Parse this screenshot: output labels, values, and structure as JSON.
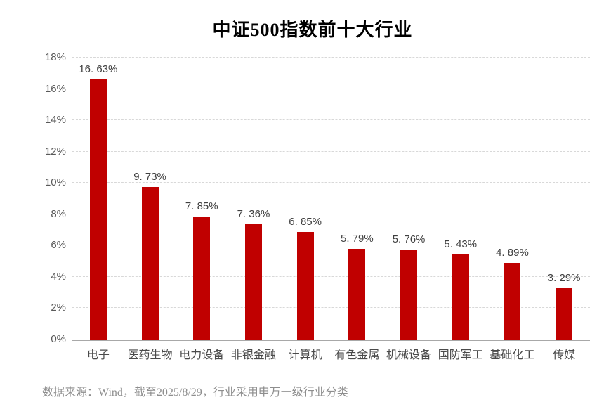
{
  "title": "中证500指数前十大行业",
  "source_note": "数据来源：Wind，截至2025/8/29，行业采用申万一级行业分类",
  "colors": {
    "bar": "#C00000",
    "gridline": "#D8D8D8",
    "axis_line": "#A8A8A8",
    "tick_label": "#595959",
    "value_label": "#3F3F3F",
    "category_label": "#4A4A4A",
    "source_text": "#8E8E8E",
    "title_text": "#000000",
    "background": "#FFFFFF"
  },
  "chart_data": {
    "type": "bar",
    "title": "中证500指数前十大行业",
    "categories": [
      "电子",
      "医药生物",
      "电力设备",
      "非银金融",
      "计算机",
      "有色金属",
      "机械设备",
      "国防军工",
      "基础化工",
      "传媒"
    ],
    "values": [
      16.63,
      9.73,
      7.85,
      7.36,
      6.85,
      5.79,
      5.76,
      5.43,
      4.89,
      3.29
    ],
    "value_labels": [
      "16. 63%",
      "9. 73%",
      "7. 85%",
      "7. 36%",
      "6. 85%",
      "5. 79%",
      "5. 76%",
      "5. 43%",
      "4. 89%",
      "3. 29%"
    ],
    "xlabel": "",
    "ylabel": "",
    "ylim": [
      0,
      18
    ],
    "ytick_step": 2,
    "ytick_labels": [
      "0%",
      "2%",
      "4%",
      "6%",
      "8%",
      "10%",
      "12%",
      "14%",
      "16%",
      "18%"
    ],
    "grid": "horizontal-dashed",
    "legend": "none",
    "bar_color": "#C00000"
  }
}
